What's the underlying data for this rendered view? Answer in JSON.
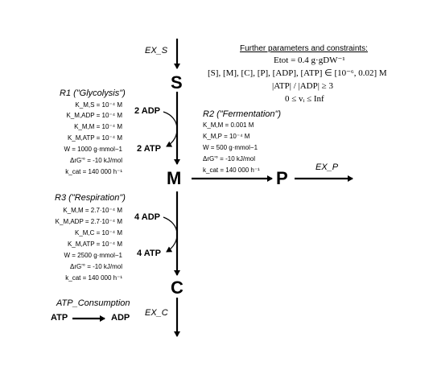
{
  "nodes": {
    "s": "S",
    "m": "M",
    "p": "P",
    "c": "C"
  },
  "exchange": {
    "ex_s": "EX_S",
    "ex_p": "EX_P",
    "ex_c": "EX_C"
  },
  "r1": {
    "title": "R1 (\"Glycolysis\")",
    "params": [
      "K_M,S = 10⁻⁴ M",
      "K_M,ADP = 10⁻⁴ M",
      "K_M,M = 10⁻⁴ M",
      "K_M,ATP = 10⁻⁴ M",
      "W = 1000 g·mmol−1",
      "ΔrG'° = -10 kJ/mol",
      "k_cat = 140 000 h⁻¹"
    ],
    "in_cofactor": "2 ADP",
    "out_cofactor": "2 ATP"
  },
  "r2": {
    "title": "R2 (\"Fermentation\")",
    "params": [
      "K_M,M = 0.001 M",
      "K_M,P = 10⁻⁴ M",
      "W = 500 g·mmol−1",
      "ΔrG'° = -10 kJ/mol",
      "k_cat = 140 000 h⁻¹"
    ]
  },
  "r3": {
    "title": "R3 (\"Respiration\")",
    "params": [
      "K_M,M = 2.7·10⁻⁴ M",
      "K_M,ADP = 2.7·10⁻⁴ M",
      "K_M,C = 10⁻⁴ M",
      "K_M,ATP = 10⁻⁴ M",
      "W = 2500 g·mmol−1",
      "ΔrG'° = -10 kJ/mol",
      "k_cat = 140 000 h⁻¹"
    ],
    "in_cofactor": "4 ADP",
    "out_cofactor": "4 ATP"
  },
  "atp_consumption": {
    "title": "ATP_Consumption",
    "left": "ATP",
    "right": "ADP"
  },
  "constraints": {
    "title": "Further parameters and constraints:",
    "lines": [
      "Etot = 0.4 g·gDW⁻¹",
      "[S], [M], [C], [P], [ADP], [ATP] ∈ [10⁻⁶, 0.02] M",
      "|ATP| / |ADP| ≥ 3",
      "0 ≤ vᵢ ≤ Inf"
    ]
  }
}
